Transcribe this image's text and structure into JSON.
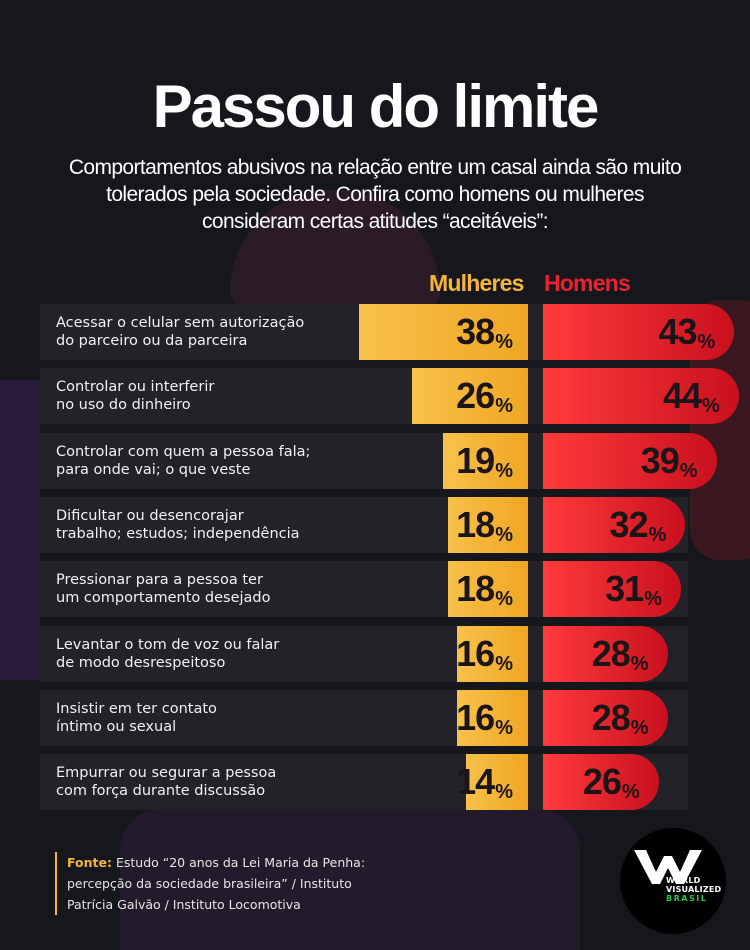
{
  "title": "Passou do limite",
  "subtitle": "Comportamentos abusivos na relação entre um casal ainda são muito tolerados pela sociedade. Confira como homens ou mulheres consideram certas atitudes “aceitáveis”:",
  "colors": {
    "women": "#f6b53a",
    "men": "#e8222e",
    "background": "#16161d"
  },
  "chart_data": {
    "type": "bar",
    "orientation": "horizontal",
    "unit": "%",
    "categories": [
      "Acessar o celular sem autorização do parceiro ou da parceira",
      "Controlar ou interferir no uso do dinheiro",
      "Controlar com quem a pessoa fala; para onde vai; o que veste",
      "Dificultar ou desencorajar trabalho; estudos; independência",
      "Pressionar para a pessoa ter um comportamento desejado",
      "Levantar o tom de voz ou falar de modo desrespeitoso",
      "Insistir em ter contato íntimo ou sexual",
      "Empurrar ou segurar a pessoa com força durante discussão"
    ],
    "category_lines": [
      [
        "Acessar o celular sem autorização",
        "do parceiro ou da parceira"
      ],
      [
        "Controlar ou interferir",
        "no uso do dinheiro"
      ],
      [
        "Controlar com quem a pessoa fala;",
        "para onde vai; o que veste"
      ],
      [
        "Dificultar ou desencorajar",
        "trabalho; estudos; independência"
      ],
      [
        "Pressionar para a pessoa ter",
        "um comportamento desejado"
      ],
      [
        "Levantar o tom de voz ou falar",
        "de modo desrespeitoso"
      ],
      [
        "Insistir em ter contato",
        "íntimo ou sexual"
      ],
      [
        "Empurrar ou segurar a pessoa",
        "com força durante discussão"
      ]
    ],
    "series": [
      {
        "name": "Mulheres",
        "values": [
          38,
          26,
          19,
          18,
          18,
          16,
          16,
          14
        ]
      },
      {
        "name": "Homens",
        "values": [
          43,
          44,
          39,
          32,
          31,
          28,
          28,
          26
        ]
      }
    ]
  },
  "source": {
    "label": "Fonte:",
    "text": "Estudo “20 anos da Lei Maria da Penha: percepção da sociedade brasileira” / Instituto Patrícia Galvão / Instituto Locomotiva"
  },
  "logo": {
    "line1": "WORLD",
    "line2": "VISUALIZED",
    "line3": "BRASIL"
  }
}
